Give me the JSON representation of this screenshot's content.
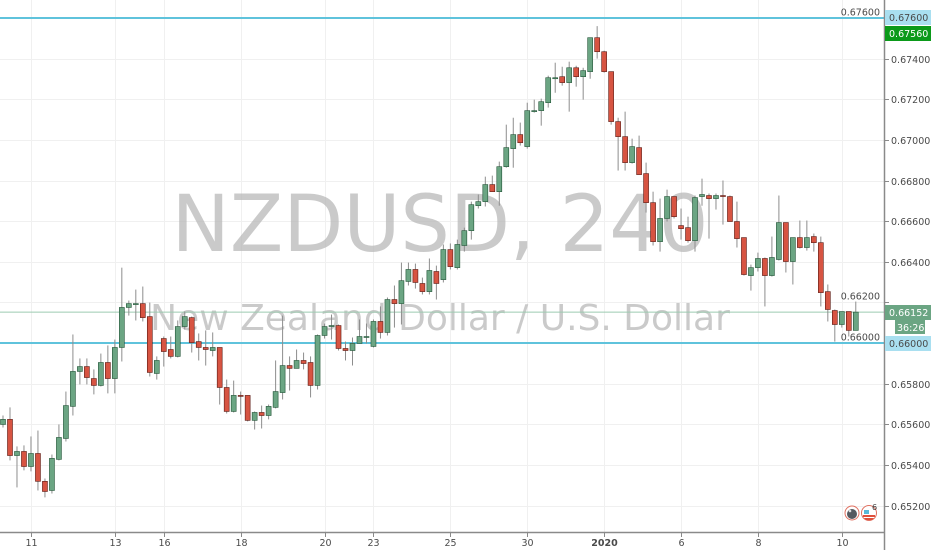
{
  "watermark": {
    "symbol": "NZDUSD, 240",
    "description": "New Zealand Dollar / U.S. Dollar"
  },
  "colors": {
    "up": "#6ba583",
    "down": "#d75442",
    "up_border": "#225437",
    "down_border": "#5b1a13",
    "hline": "#5fc3dc",
    "last_price_bg": "#6ba583",
    "high_label_bg": "#0b9a1a",
    "grid": "#f0f0f0"
  },
  "price_labels": {
    "hline_top": "0.67600",
    "high": "0.67560",
    "last": "0.66152",
    "countdown": "36:26",
    "hline_bottom": "0.66000"
  },
  "event_icons": [
    {
      "name": "news-event-icon",
      "count": ""
    },
    {
      "name": "us-flag-event-icon",
      "count": "6"
    }
  ],
  "chart_data": {
    "type": "candlestick",
    "title": "",
    "xlabel": "",
    "ylabel": "",
    "ylim": [
      0.6514,
      0.6778
    ],
    "grid": true,
    "yticks": [
      "0.67600",
      "0.67400",
      "0.67200",
      "0.67000",
      "0.66800",
      "0.66600",
      "0.66400",
      "0.66200",
      "0.66000",
      "0.65800",
      "0.65600",
      "0.65400",
      "0.65200"
    ],
    "xticks": [
      {
        "label": "11",
        "bar": 4
      },
      {
        "label": "13",
        "bar": 16
      },
      {
        "label": "16",
        "bar": 23
      },
      {
        "label": "18",
        "bar": 34
      },
      {
        "label": "20",
        "bar": 46
      },
      {
        "label": "23",
        "bar": 53
      },
      {
        "label": "25",
        "bar": 64
      },
      {
        "label": "30",
        "bar": 75
      },
      {
        "label": "2020",
        "bar": 86
      },
      {
        "label": "6",
        "bar": 97
      },
      {
        "label": "8",
        "bar": 108
      },
      {
        "label": "10",
        "bar": 120
      }
    ],
    "horizontal_lines": [
      0.676,
      0.66
    ],
    "last_price": 0.66152,
    "ohlc": [
      [
        0.65599,
        0.65643,
        0.65584,
        0.65624
      ],
      [
        0.65624,
        0.65683,
        0.65422,
        0.65446
      ],
      [
        0.65446,
        0.65491,
        0.65289,
        0.65466
      ],
      [
        0.65466,
        0.65496,
        0.65373,
        0.65392
      ],
      [
        0.65392,
        0.6554,
        0.65368,
        0.65456
      ],
      [
        0.65456,
        0.65569,
        0.65274,
        0.65319
      ],
      [
        0.65319,
        0.65333,
        0.6524,
        0.65269
      ],
      [
        0.65274,
        0.65451,
        0.65259,
        0.65432
      ],
      [
        0.65427,
        0.65599,
        0.65422,
        0.65535
      ],
      [
        0.6553,
        0.65761,
        0.65515,
        0.65692
      ],
      [
        0.65688,
        0.66042,
        0.65643,
        0.6586
      ],
      [
        0.6586,
        0.65924,
        0.65796,
        0.65884
      ],
      [
        0.65884,
        0.65924,
        0.65796,
        0.6583
      ],
      [
        0.65825,
        0.6587,
        0.65747,
        0.65791
      ],
      [
        0.65791,
        0.65948,
        0.65786,
        0.65904
      ],
      [
        0.65904,
        0.65988,
        0.65752,
        0.65825
      ],
      [
        0.65825,
        0.66017,
        0.65752,
        0.65978
      ],
      [
        0.65978,
        0.66371,
        0.65909,
        0.66175
      ],
      [
        0.66175,
        0.66209,
        0.66135,
        0.66194
      ],
      [
        0.66189,
        0.66263,
        0.66111,
        0.66194
      ],
      [
        0.66194,
        0.66278,
        0.66106,
        0.66125
      ],
      [
        0.6613,
        0.66199,
        0.65835,
        0.65855
      ],
      [
        0.6585,
        0.65934,
        0.6582,
        0.65914
      ],
      [
        0.66022,
        0.66032,
        0.65884,
        0.65958
      ],
      [
        0.65968,
        0.66032,
        0.65924,
        0.65934
      ],
      [
        0.65934,
        0.66111,
        0.65929,
        0.66081
      ],
      [
        0.66081,
        0.66155,
        0.66066,
        0.6613
      ],
      [
        0.66125,
        0.6613,
        0.65953,
        0.66002
      ],
      [
        0.66007,
        0.66047,
        0.65914,
        0.65978
      ],
      [
        0.65978,
        0.66062,
        0.65889,
        0.65968
      ],
      [
        0.65963,
        0.66052,
        0.65934,
        0.65978
      ],
      [
        0.65978,
        0.65978,
        0.65697,
        0.65781
      ],
      [
        0.65781,
        0.6582,
        0.65653,
        0.65663
      ],
      [
        0.65663,
        0.65815,
        0.65658,
        0.65742
      ],
      [
        0.65742,
        0.65761,
        0.65648,
        0.65737
      ],
      [
        0.65742,
        0.65742,
        0.65614,
        0.65619
      ],
      [
        0.65619,
        0.65663,
        0.65574,
        0.65658
      ],
      [
        0.65658,
        0.65692,
        0.65579,
        0.65643
      ],
      [
        0.65643,
        0.65697,
        0.65624,
        0.65688
      ],
      [
        0.65683,
        0.65914,
        0.65678,
        0.65761
      ],
      [
        0.65756,
        0.66135,
        0.65722,
        0.65889
      ],
      [
        0.65889,
        0.65934,
        0.65766,
        0.65875
      ],
      [
        0.65875,
        0.65968,
        0.65875,
        0.65914
      ],
      [
        0.65914,
        0.65953,
        0.6587,
        0.65899
      ],
      [
        0.65904,
        0.65934,
        0.65732,
        0.65791
      ],
      [
        0.65791,
        0.66042,
        0.65771,
        0.66037
      ],
      [
        0.66037,
        0.66096,
        0.66022,
        0.66081
      ],
      [
        0.66081,
        0.6614,
        0.66017,
        0.66086
      ],
      [
        0.66086,
        0.66091,
        0.65963,
        0.65973
      ],
      [
        0.65973,
        0.66007,
        0.65914,
        0.65963
      ],
      [
        0.65963,
        0.66027,
        0.65889,
        0.65998
      ],
      [
        0.65998,
        0.66116,
        0.65998,
        0.66032
      ],
      [
        0.66027,
        0.66096,
        0.65998,
        0.66032
      ],
      [
        0.65983,
        0.66116,
        0.65978,
        0.66106
      ],
      [
        0.66106,
        0.6618,
        0.66022,
        0.66052
      ],
      [
        0.66052,
        0.66224,
        0.66037,
        0.66214
      ],
      [
        0.66214,
        0.66283,
        0.66076,
        0.66194
      ],
      [
        0.66194,
        0.66396,
        0.66091,
        0.66307
      ],
      [
        0.66303,
        0.66396,
        0.66283,
        0.66362
      ],
      [
        0.66362,
        0.66391,
        0.66268,
        0.66298
      ],
      [
        0.66293,
        0.66322,
        0.66239,
        0.66253
      ],
      [
        0.66253,
        0.66416,
        0.66239,
        0.66357
      ],
      [
        0.66352,
        0.66381,
        0.66214,
        0.66293
      ],
      [
        0.66312,
        0.66485,
        0.66298,
        0.6646
      ],
      [
        0.6646,
        0.6649,
        0.66362,
        0.66376
      ],
      [
        0.66371,
        0.66509,
        0.66362,
        0.66485
      ],
      [
        0.6648,
        0.66568,
        0.6645,
        0.66553
      ],
      [
        0.66553,
        0.66696,
        0.66509,
        0.66681
      ],
      [
        0.66676,
        0.66731,
        0.66662,
        0.66696
      ],
      [
        0.66696,
        0.66819,
        0.66672,
        0.6678
      ],
      [
        0.6678,
        0.66824,
        0.66745,
        0.66745
      ],
      [
        0.66745,
        0.66893,
        0.66676,
        0.66868
      ],
      [
        0.66868,
        0.67075,
        0.66863,
        0.66962
      ],
      [
        0.66957,
        0.67109,
        0.66863,
        0.67026
      ],
      [
        0.67026,
        0.67085,
        0.66972,
        0.66986
      ],
      [
        0.66967,
        0.67183,
        0.66957,
        0.67144
      ],
      [
        0.67139,
        0.67198,
        0.67134,
        0.67144
      ],
      [
        0.67144,
        0.67203,
        0.6707,
        0.67188
      ],
      [
        0.67183,
        0.67316,
        0.67159,
        0.67306
      ],
      [
        0.67301,
        0.6738,
        0.67232,
        0.67306
      ],
      [
        0.67311,
        0.6736,
        0.67267,
        0.67282
      ],
      [
        0.67282,
        0.67385,
        0.67139,
        0.67355
      ],
      [
        0.67355,
        0.67365,
        0.67262,
        0.67311
      ],
      [
        0.67311,
        0.67355,
        0.67198,
        0.67341
      ],
      [
        0.67336,
        0.67503,
        0.67301,
        0.67503
      ],
      [
        0.67503,
        0.6756,
        0.674,
        0.67434
      ],
      [
        0.67434,
        0.67439,
        0.67331,
        0.67336
      ],
      [
        0.67336,
        0.67336,
        0.67075,
        0.6709
      ],
      [
        0.6709,
        0.67109,
        0.66849,
        0.67016
      ],
      [
        0.67016,
        0.67139,
        0.66849,
        0.66888
      ],
      [
        0.66888,
        0.67006,
        0.66883,
        0.66967
      ],
      [
        0.66962,
        0.67021,
        0.66829,
        0.66829
      ],
      [
        0.66834,
        0.66888,
        0.66642,
        0.66691
      ],
      [
        0.66691,
        0.66745,
        0.6648,
        0.66499
      ],
      [
        0.66499,
        0.66711,
        0.6645,
        0.66613
      ],
      [
        0.66613,
        0.66755,
        0.66598,
        0.66721
      ],
      [
        0.66721,
        0.66721,
        0.66613,
        0.66622
      ],
      [
        0.66578,
        0.66662,
        0.66509,
        0.66563
      ],
      [
        0.66568,
        0.66622,
        0.66494,
        0.66504
      ],
      [
        0.66504,
        0.66726,
        0.6645,
        0.66716
      ],
      [
        0.66721,
        0.66809,
        0.66676,
        0.66731
      ],
      [
        0.66726,
        0.66736,
        0.66514,
        0.66711
      ],
      [
        0.66711,
        0.66736,
        0.66657,
        0.66726
      ],
      [
        0.66726,
        0.668,
        0.66583,
        0.66721
      ],
      [
        0.66721,
        0.66726,
        0.66598,
        0.66598
      ],
      [
        0.66598,
        0.66696,
        0.6647,
        0.66514
      ],
      [
        0.66519,
        0.66519,
        0.66332,
        0.66337
      ],
      [
        0.66332,
        0.66386,
        0.66258,
        0.66371
      ],
      [
        0.66371,
        0.66445,
        0.66352,
        0.66416
      ],
      [
        0.66416,
        0.66421,
        0.6618,
        0.66332
      ],
      [
        0.66332,
        0.66524,
        0.66327,
        0.66421
      ],
      [
        0.66411,
        0.66726,
        0.66406,
        0.66593
      ],
      [
        0.66593,
        0.66593,
        0.66347,
        0.66401
      ],
      [
        0.66401,
        0.66519,
        0.66288,
        0.66519
      ],
      [
        0.66519,
        0.66603,
        0.66465,
        0.6647
      ],
      [
        0.6647,
        0.66603,
        0.66455,
        0.66519
      ],
      [
        0.66524,
        0.66539,
        0.6645,
        0.66494
      ],
      [
        0.66494,
        0.66524,
        0.6618,
        0.66248
      ],
      [
        0.66253,
        0.66288,
        0.66106,
        0.66165
      ],
      [
        0.6616,
        0.66165,
        0.66007,
        0.66091
      ],
      [
        0.66091,
        0.66155,
        0.66076,
        0.66155
      ],
      [
        0.66155,
        0.66155,
        0.66032,
        0.66062
      ],
      [
        0.66062,
        0.66204,
        0.66062,
        0.66152
      ]
    ]
  }
}
